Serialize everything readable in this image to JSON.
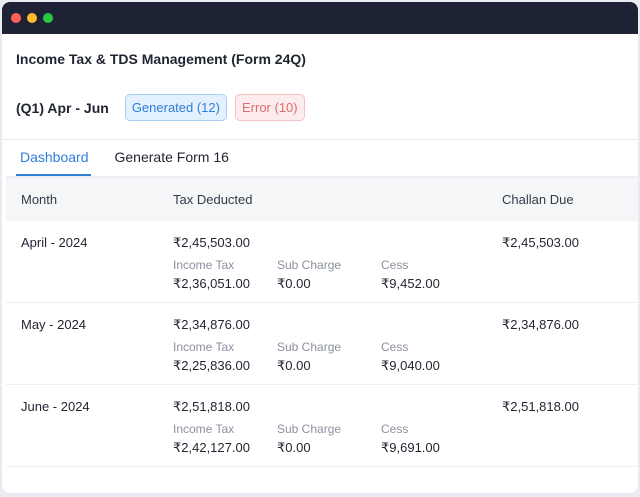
{
  "page": {
    "title": "Income Tax & TDS Management (Form 24Q)",
    "quarter": "(Q1) Apr - Jun",
    "badges": {
      "generated": "Generated (12)",
      "error": "Error (10)"
    }
  },
  "tabs": [
    "Dashboard",
    "Generate Form 16"
  ],
  "table": {
    "headers": {
      "month": "Month",
      "tax_deducted": "Tax Deducted",
      "challan_due": "Challan Due"
    },
    "sub_labels": {
      "income_tax": "Income Tax",
      "sub_charge": "Sub Charge",
      "cess": "Cess"
    },
    "rows": [
      {
        "month": "April - 2024",
        "total": "₹2,45,503.00",
        "income_tax": "₹2,36,051.00",
        "sub_charge": "₹0.00",
        "cess": "₹9,452.00",
        "challan": "₹2,45,503.00"
      },
      {
        "month": "May - 2024",
        "total": "₹2,34,876.00",
        "income_tax": "₹2,25,836.00",
        "sub_charge": "₹0.00",
        "cess": "₹9,040.00",
        "challan": "₹2,34,876.00"
      },
      {
        "month": "June - 2024",
        "total": "₹2,51,818.00",
        "income_tax": "₹2,42,127.00",
        "sub_charge": "₹0.00",
        "cess": "₹9,691.00",
        "challan": "₹2,51,818.00"
      }
    ]
  },
  "colors": {
    "accent": "#2e7fd6",
    "error": "#e06a6f",
    "titlebar": "#1e2235"
  }
}
